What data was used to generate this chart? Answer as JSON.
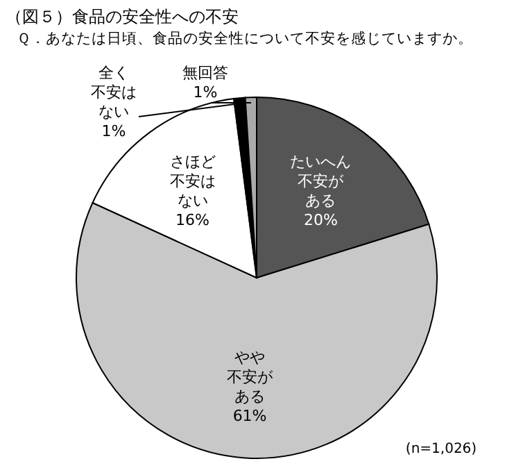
{
  "chart_data": {
    "type": "pie",
    "title": "（図５）食品の安全性への不安",
    "subtitle": "Ｑ．あなたは日頃、食品の安全性について不安を感じていますか。",
    "categories": [
      "たいへん不安がある",
      "やや不安がある",
      "さほど不安はない",
      "全く不安はない",
      "無回答"
    ],
    "values": [
      20,
      61,
      16,
      1,
      1
    ],
    "colors": [
      "#555555",
      "#c8c8c8",
      "#ffffff",
      "#000000",
      "#aaaaaa"
    ],
    "value_labels": [
      "20%",
      "61%",
      "16%",
      "1%",
      "1%"
    ],
    "annotations": [
      "(n=1,026)"
    ]
  }
}
